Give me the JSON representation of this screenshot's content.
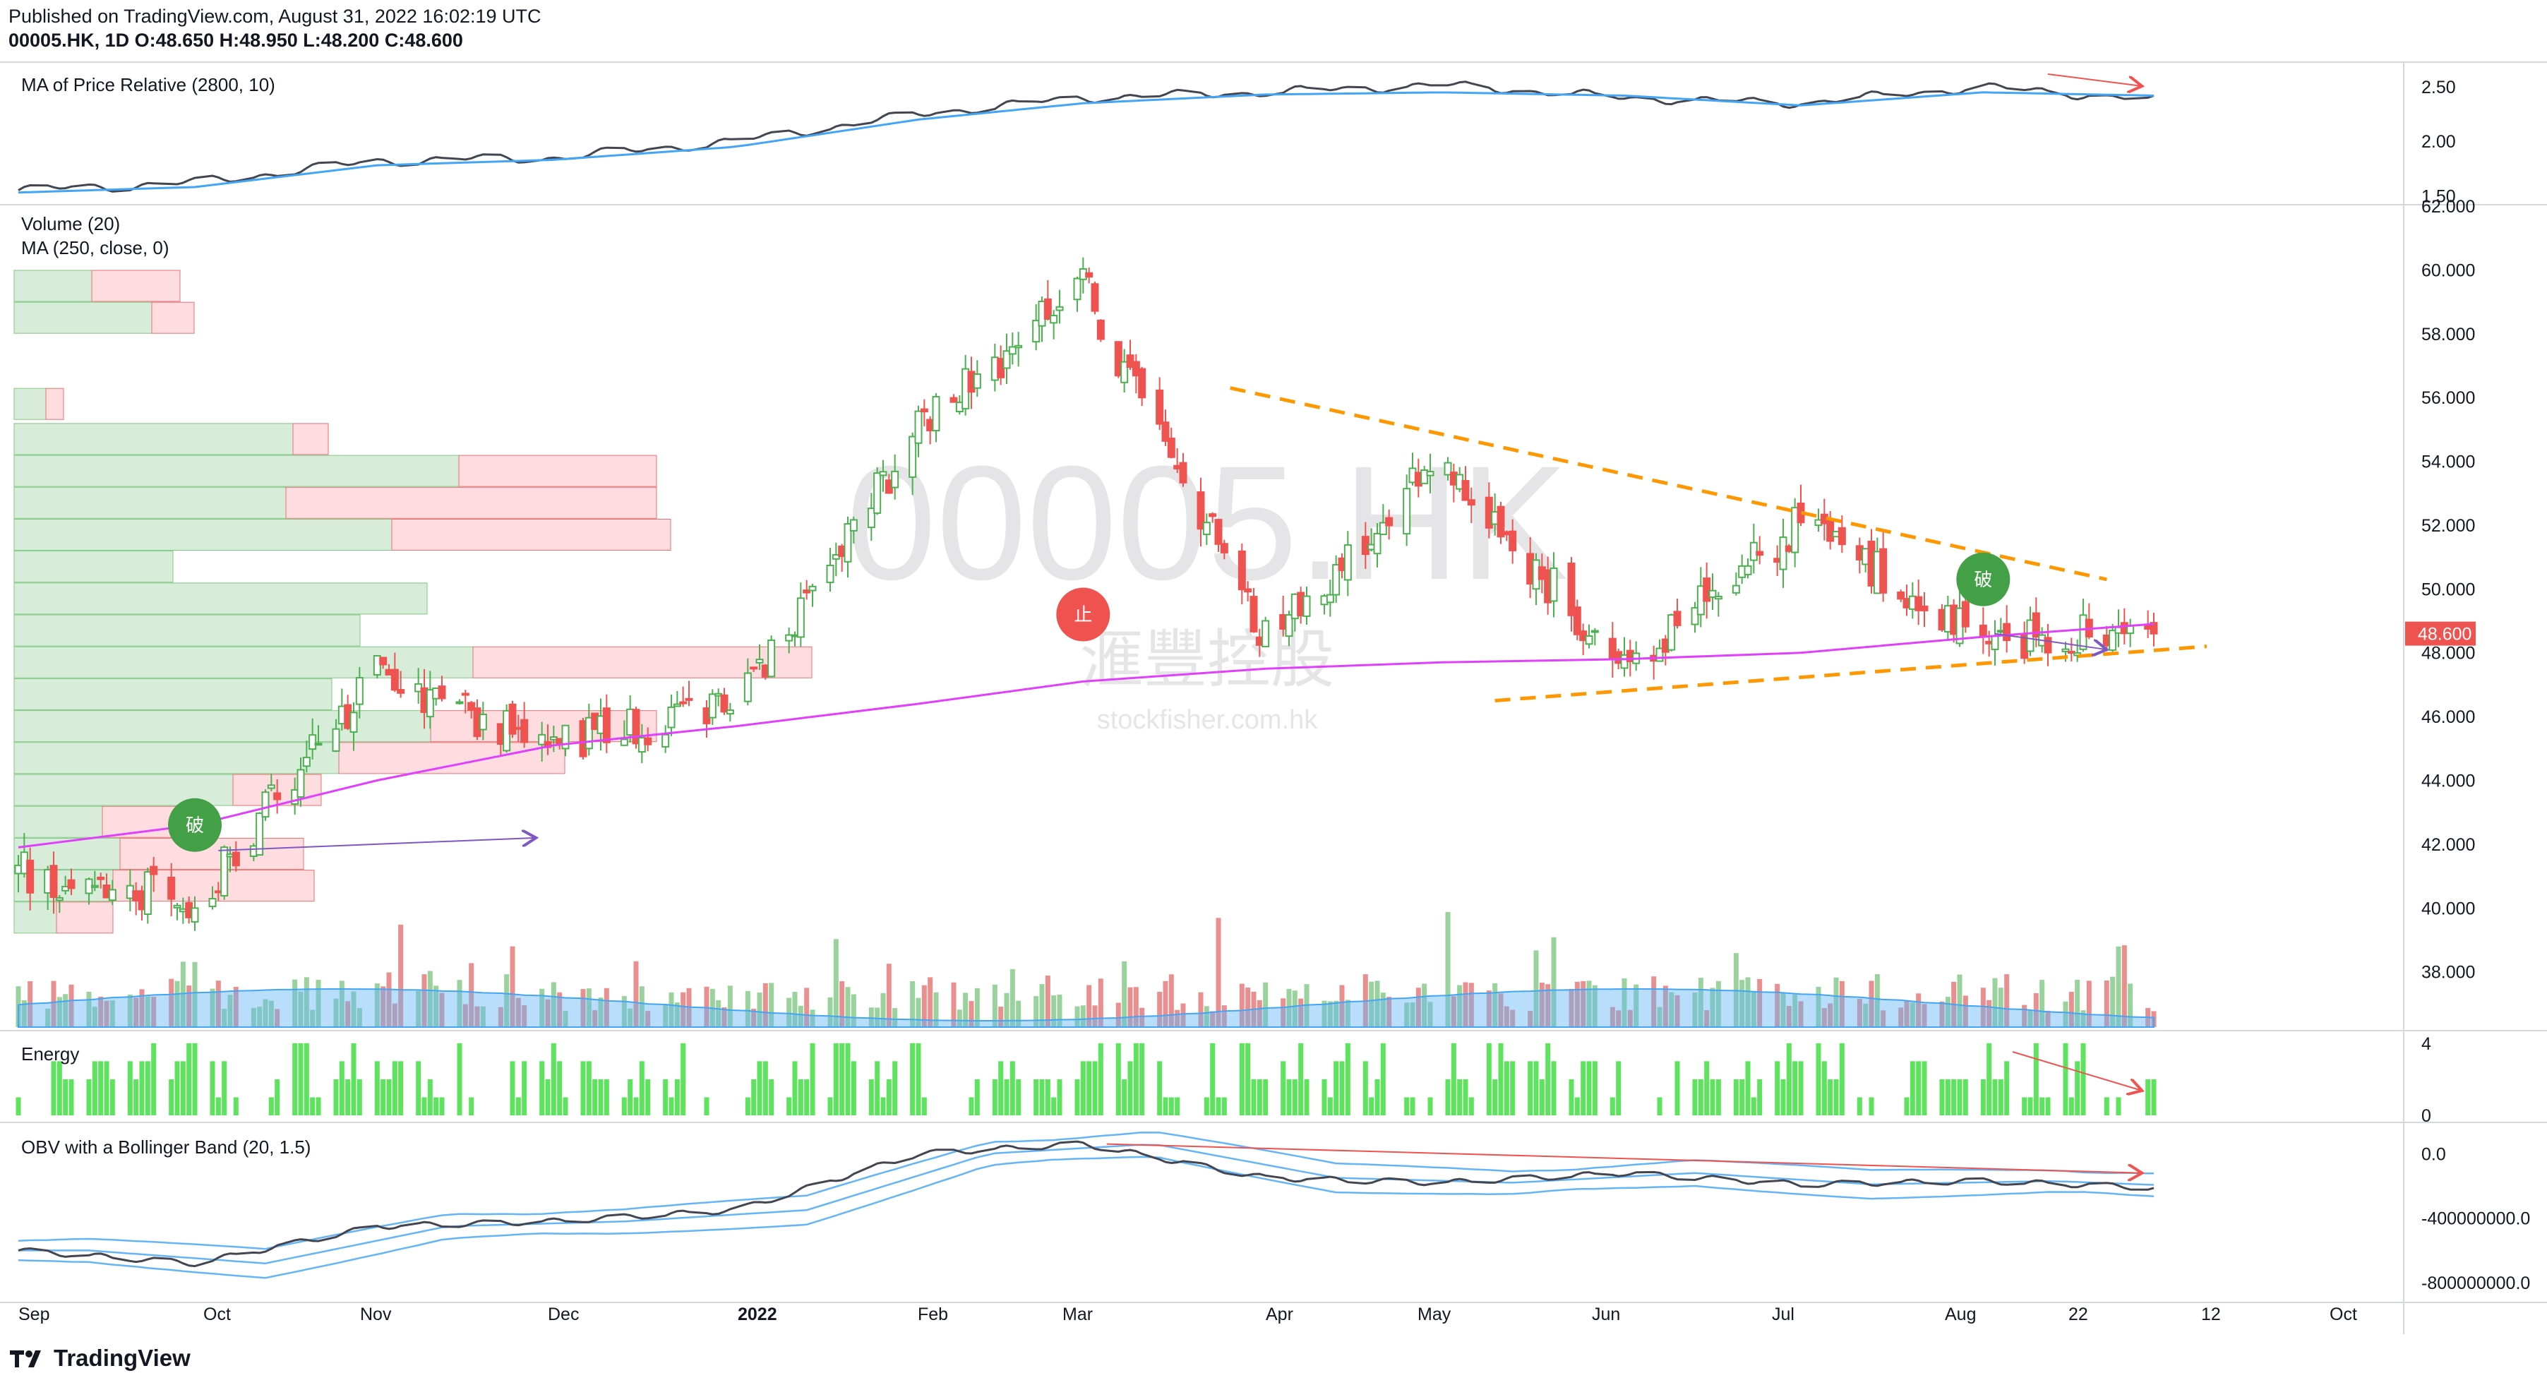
{
  "header": {
    "published": "Published on TradingView.com, August 31, 2022 16:02:19 UTC",
    "symbol_line": "00005.HK, 1D O:48.650 H:48.950 L:48.200 C:48.600"
  },
  "watermark": {
    "symbol": "00005.HK",
    "chinese": "滙豐控股",
    "site": "stockfisher.com.hk"
  },
  "footer": {
    "brand": "TradingView"
  },
  "colors": {
    "up": "#4caf50",
    "down": "#ef5350",
    "ma250": "#e040fb",
    "trend": "#ff9800",
    "obv": "#434651",
    "band": "#64b5f6",
    "energy": "#5ee35e",
    "arrow": "#7e57c2"
  },
  "chart_data": [
    {
      "type": "line",
      "panel": "price-relative",
      "title": "MA of Price Relative (2800, 10)",
      "y_ticks": [
        "2.50",
        "2.00",
        "1.50"
      ],
      "ylim": [
        1.45,
        2.65
      ],
      "series": [
        {
          "values_by": "date",
          "x": [
            "2021-09-01",
            "2021-10-01",
            "2021-11-01",
            "2021-12-01",
            "2022-01-01",
            "2022-02-01",
            "2022-03-01",
            "2022-04-01",
            "2022-05-01",
            "2022-06-01",
            "2022-07-01",
            "2022-08-01",
            "2022-08-30"
          ],
          "values": [
            1.55,
            1.62,
            1.82,
            1.85,
            2.0,
            2.25,
            2.4,
            2.45,
            2.52,
            2.4,
            2.35,
            2.5,
            2.38
          ]
        },
        {
          "values_by": "date",
          "x": [
            "2021-09-01",
            "2021-10-01",
            "2021-11-01",
            "2021-12-01",
            "2022-01-01",
            "2022-02-01",
            "2022-03-01",
            "2022-04-01",
            "2022-05-01",
            "2022-06-01",
            "2022-07-01",
            "2022-08-01",
            "2022-08-30"
          ],
          "values": [
            1.53,
            1.58,
            1.78,
            1.83,
            1.95,
            2.2,
            2.35,
            2.43,
            2.45,
            2.42,
            2.33,
            2.45,
            2.42
          ]
        }
      ]
    },
    {
      "type": "candlestick",
      "panel": "price",
      "labels": [
        "Volume (20)",
        "MA (250, close, 0)"
      ],
      "y_ticks": [
        "62.000",
        "60.000",
        "58.000",
        "56.000",
        "54.000",
        "52.000",
        "50.000",
        "48.000",
        "46.000",
        "44.000",
        "42.000",
        "40.000",
        "38.000"
      ],
      "ylim": [
        36.2,
        62.0
      ],
      "last_price": "48.600",
      "x_ticks": [
        "Sep",
        "Oct",
        "Nov",
        "Dec",
        "2022",
        "Feb",
        "Mar",
        "Apr",
        "May",
        "Jun",
        "Jul",
        "Aug",
        "22",
        "12",
        "Oct"
      ],
      "anchors": {
        "dates": [
          "2021-09-01",
          "2021-10-01",
          "2021-11-01",
          "2021-12-01",
          "2022-01-01",
          "2022-02-01",
          "2022-03-01",
          "2022-04-01",
          "2022-05-01",
          "2022-06-01",
          "2022-07-01",
          "2022-08-01",
          "2022-08-30"
        ],
        "close": [
          41.2,
          40.2,
          47.3,
          45.0,
          46.5,
          55.0,
          59.5,
          48.5,
          54.0,
          47.5,
          52.0,
          48.5,
          48.6
        ]
      },
      "ma250": {
        "dates": [
          "2021-09-01",
          "2021-10-01",
          "2021-11-01",
          "2021-12-01",
          "2022-01-01",
          "2022-02-01",
          "2022-03-01",
          "2022-04-01",
          "2022-05-01",
          "2022-06-01",
          "2022-07-01",
          "2022-08-01",
          "2022-08-30"
        ],
        "values": [
          41.9,
          42.6,
          44.0,
          45.1,
          45.7,
          46.4,
          47.1,
          47.5,
          47.7,
          47.8,
          48.0,
          48.5,
          48.9
        ]
      },
      "trendlines": [
        {
          "name": "upper",
          "from": [
            "2022-03-26",
            56.3
          ],
          "to": [
            "2022-08-22",
            50.3
          ]
        },
        {
          "name": "lower",
          "from": [
            "2022-05-10",
            46.5
          ],
          "to": [
            "2022-09-08",
            48.2
          ]
        }
      ],
      "volume_profile_levels": [
        "59.5",
        "58.5",
        "55.8",
        "54.7",
        "53.7",
        "52.7",
        "51.7",
        "50.7",
        "49.7",
        "48.7",
        "47.7",
        "46.7",
        "45.7",
        "44.7",
        "43.7",
        "42.7",
        "41.7",
        "40.7",
        "39.7"
      ],
      "signals": [
        {
          "text": "破",
          "date": "2021-10-01",
          "price": 42.6
        },
        {
          "text": "止",
          "date": "2022-03-01",
          "price": 49.2
        },
        {
          "text": "破",
          "date": "2022-08-01",
          "price": 50.3
        }
      ]
    },
    {
      "type": "bar",
      "panel": "energy",
      "title": "Energy",
      "y_ticks": [
        "4",
        "0"
      ],
      "ylim": [
        0,
        4.5
      ]
    },
    {
      "type": "line",
      "panel": "obv",
      "title": "OBV with a Bollinger Band (20, 1.5)",
      "y_ticks": [
        "0.0",
        "-400000000.0",
        "-800000000.0"
      ],
      "ylim": [
        -900000000,
        150000000
      ],
      "series": [
        {
          "values_by": "date",
          "x": [
            "2021-09-01",
            "2021-10-01",
            "2021-11-01",
            "2021-12-01",
            "2022-01-01",
            "2022-02-01",
            "2022-03-01",
            "2022-04-01",
            "2022-05-01",
            "2022-06-01",
            "2022-07-01",
            "2022-08-01",
            "2022-08-30"
          ],
          "values": [
            -600000000,
            -680000000,
            -450000000,
            -420000000,
            -350000000,
            0,
            60000000,
            -150000000,
            -180000000,
            -120000000,
            -190000000,
            -170000000,
            -210000000
          ]
        }
      ]
    }
  ]
}
